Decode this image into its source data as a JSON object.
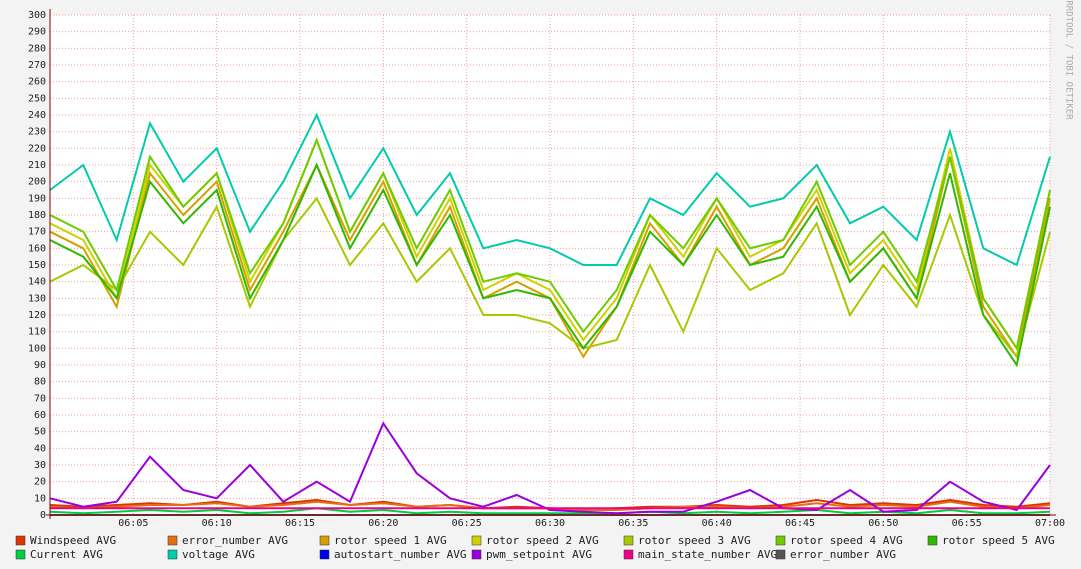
{
  "chart_data": {
    "type": "line",
    "watermark": "RRDTOOL / TOBI OETIKER",
    "x": [
      "06:00",
      "06:02",
      "06:04",
      "06:06",
      "06:08",
      "06:10",
      "06:12",
      "06:14",
      "06:16",
      "06:18",
      "06:20",
      "06:22",
      "06:24",
      "06:26",
      "06:28",
      "06:30",
      "06:32",
      "06:34",
      "06:36",
      "06:38",
      "06:40",
      "06:42",
      "06:44",
      "06:46",
      "06:48",
      "06:50",
      "06:52",
      "06:54",
      "06:56",
      "06:58",
      "07:00"
    ],
    "xlim": [
      "06:00",
      "07:00"
    ],
    "xticks": [
      "06:05",
      "06:10",
      "06:15",
      "06:20",
      "06:25",
      "06:30",
      "06:35",
      "06:40",
      "06:45",
      "06:50",
      "06:55",
      "07:00"
    ],
    "ylim": [
      0,
      300
    ],
    "yticks": [
      0,
      10,
      20,
      30,
      40,
      50,
      60,
      70,
      80,
      90,
      100,
      110,
      120,
      130,
      140,
      150,
      160,
      170,
      180,
      190,
      200,
      210,
      220,
      230,
      240,
      250,
      260,
      270,
      280,
      290,
      300
    ],
    "grid": true,
    "series": [
      {
        "name": "Windspeed AVG",
        "color": "#dd3300",
        "values": [
          6,
          5,
          6,
          7,
          6,
          8,
          5,
          7,
          9,
          6,
          8,
          5,
          6,
          4,
          5,
          4,
          3,
          4,
          5,
          5,
          6,
          5,
          6,
          9,
          6,
          7,
          6,
          9,
          6,
          5,
          7
        ]
      },
      {
        "name": "error_number AVG",
        "color": "#e07010",
        "values": [
          5,
          4,
          5,
          6,
          6,
          7,
          5,
          6,
          8,
          6,
          7,
          5,
          6,
          4,
          4,
          4,
          3,
          3,
          4,
          5,
          5,
          4,
          5,
          7,
          5,
          6,
          5,
          8,
          5,
          4,
          6
        ]
      },
      {
        "name": "rotor speed 1 AVG",
        "color": "#d4a000",
        "values": [
          170,
          160,
          125,
          205,
          180,
          200,
          135,
          170,
          210,
          165,
          200,
          150,
          185,
          130,
          140,
          130,
          95,
          125,
          175,
          150,
          185,
          150,
          160,
          190,
          140,
          160,
          130,
          215,
          125,
          95,
          190
        ]
      },
      {
        "name": "rotor speed 2 AVG",
        "color": "#d0d000",
        "values": [
          175,
          165,
          130,
          210,
          185,
          205,
          140,
          175,
          225,
          170,
          205,
          155,
          190,
          135,
          145,
          135,
          105,
          130,
          180,
          155,
          190,
          155,
          165,
          195,
          145,
          165,
          135,
          220,
          130,
          100,
          195
        ]
      },
      {
        "name": "rotor speed 3 AVG",
        "color": "#a8c800",
        "values": [
          140,
          150,
          135,
          170,
          150,
          185,
          125,
          165,
          190,
          150,
          175,
          140,
          160,
          120,
          120,
          115,
          100,
          105,
          150,
          110,
          160,
          135,
          145,
          175,
          120,
          150,
          125,
          180,
          120,
          95,
          170
        ]
      },
      {
        "name": "rotor speed 4 AVG",
        "color": "#6ccc00",
        "values": [
          180,
          170,
          135,
          215,
          185,
          205,
          145,
          175,
          225,
          170,
          205,
          160,
          195,
          140,
          145,
          140,
          110,
          135,
          180,
          160,
          190,
          160,
          165,
          200,
          150,
          170,
          140,
          215,
          130,
          100,
          195
        ]
      },
      {
        "name": "rotor speed 5 AVG",
        "color": "#30b800",
        "values": [
          165,
          155,
          130,
          200,
          175,
          195,
          130,
          165,
          210,
          160,
          195,
          150,
          180,
          130,
          135,
          130,
          100,
          125,
          170,
          150,
          180,
          150,
          155,
          185,
          140,
          160,
          130,
          205,
          120,
          90,
          185
        ]
      },
      {
        "name": "Current AVG",
        "color": "#00cc44",
        "values": [
          2,
          1,
          2,
          3,
          2,
          3,
          1,
          2,
          4,
          2,
          3,
          1,
          2,
          1,
          1,
          1,
          1,
          1,
          2,
          1,
          2,
          1,
          2,
          3,
          1,
          2,
          1,
          3,
          1,
          1,
          2
        ]
      },
      {
        "name": "voltage AVG",
        "color": "#00ccaa",
        "values": [
          195,
          210,
          165,
          235,
          200,
          220,
          170,
          200,
          240,
          190,
          220,
          180,
          205,
          160,
          165,
          160,
          150,
          150,
          190,
          180,
          205,
          185,
          190,
          210,
          175,
          185,
          165,
          230,
          160,
          150,
          215
        ]
      },
      {
        "name": "autostart_number AVG",
        "color": "#0000ee",
        "values": [
          0,
          0,
          0,
          0,
          0,
          0,
          0,
          0,
          0,
          0,
          0,
          0,
          0,
          0,
          0,
          0,
          0,
          0,
          0,
          0,
          0,
          0,
          0,
          0,
          0,
          0,
          0,
          0,
          0,
          0,
          0
        ]
      },
      {
        "name": "pwm_setpoint AVG",
        "color": "#9900dd",
        "values": [
          10,
          5,
          8,
          35,
          15,
          10,
          30,
          8,
          20,
          8,
          55,
          25,
          10,
          5,
          12,
          3,
          2,
          1,
          2,
          2,
          8,
          15,
          4,
          3,
          15,
          2,
          3,
          20,
          8,
          3,
          30
        ]
      },
      {
        "name": "main_state_number AVG",
        "color": "#ee0088",
        "values": [
          4,
          4,
          4,
          4,
          4,
          4,
          4,
          4,
          4,
          4,
          4,
          4,
          4,
          4,
          4,
          4,
          4,
          4,
          4,
          4,
          4,
          4,
          4,
          4,
          4,
          4,
          4,
          4,
          4,
          4,
          4
        ]
      },
      {
        "name": "error_number AVG",
        "color": "#555555",
        "values": [
          0,
          0,
          0,
          0,
          0,
          0,
          0,
          0,
          0,
          0,
          0,
          0,
          0,
          0,
          0,
          0,
          0,
          0,
          0,
          0,
          0,
          0,
          0,
          0,
          0,
          0,
          0,
          0,
          0,
          0,
          0
        ]
      }
    ]
  }
}
